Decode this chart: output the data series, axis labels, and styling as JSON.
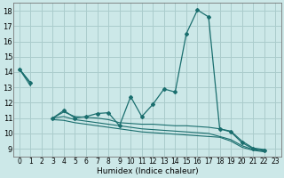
{
  "xlabel": "Humidex (Indice chaleur)",
  "xlim": [
    -0.5,
    23.5
  ],
  "ylim": [
    8.5,
    18.5
  ],
  "xticks": [
    0,
    1,
    2,
    3,
    4,
    5,
    6,
    7,
    8,
    9,
    10,
    11,
    12,
    13,
    14,
    15,
    16,
    17,
    18,
    19,
    20,
    21,
    22,
    23
  ],
  "yticks": [
    9,
    10,
    11,
    12,
    13,
    14,
    15,
    16,
    17,
    18
  ],
  "bg_color": "#cce8e8",
  "grid_color": "#aacccc",
  "line_color": "#1a6e6e",
  "main_line": [
    14.2,
    13.3,
    null,
    11.0,
    11.5,
    11.0,
    11.1,
    11.3,
    11.35,
    10.5,
    12.4,
    11.1,
    11.9,
    12.9,
    12.7,
    16.5,
    18.05,
    17.6,
    10.3,
    10.1,
    9.4,
    9.0,
    8.9
  ],
  "ref_line1": [
    14.2,
    13.3,
    null,
    11.0,
    11.4,
    11.1,
    11.05,
    11.0,
    10.9,
    10.7,
    10.65,
    10.6,
    10.6,
    10.55,
    10.5,
    10.5,
    10.45,
    10.4,
    10.3,
    10.15,
    9.5,
    9.05,
    8.95
  ],
  "ref_line2": [
    14.2,
    13.3,
    null,
    11.0,
    11.1,
    10.9,
    10.8,
    10.7,
    10.6,
    10.5,
    10.4,
    10.3,
    10.25,
    10.2,
    10.15,
    10.1,
    10.05,
    10.0,
    9.8,
    9.6,
    9.2,
    8.95,
    8.85
  ],
  "ref_line3": [
    14.2,
    13.1,
    null,
    10.9,
    10.85,
    10.7,
    10.6,
    10.5,
    10.4,
    10.3,
    10.2,
    10.1,
    10.05,
    10.0,
    9.95,
    9.9,
    9.85,
    9.8,
    9.75,
    9.5,
    9.1,
    8.9,
    8.8
  ]
}
